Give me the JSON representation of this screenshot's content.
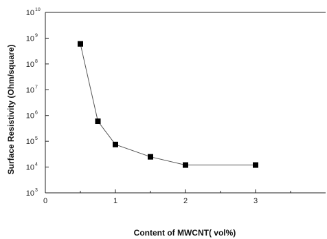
{
  "chart_data": {
    "type": "line",
    "xlabel": "Content of  MWCNT( vol%)",
    "ylabel": "Surface Resistivity (Ohm/square)",
    "xlim": [
      0,
      4
    ],
    "ylim": [
      1000,
      10000000000
    ],
    "y_scale": "log",
    "x_ticks": [
      "0",
      "1",
      "2",
      "3"
    ],
    "y_ticks": [
      {
        "base": "10",
        "exp": "3"
      },
      {
        "base": "10",
        "exp": "4"
      },
      {
        "base": "10",
        "exp": "5"
      },
      {
        "base": "10",
        "exp": "6"
      },
      {
        "base": "10",
        "exp": "7"
      },
      {
        "base": "10",
        "exp": "8"
      },
      {
        "base": "10",
        "exp": "9"
      },
      {
        "base": "10",
        "exp": "10"
      }
    ],
    "grid": false,
    "series": [
      {
        "marker": "square",
        "points": [
          {
            "x": 0.5,
            "y": 600000000
          },
          {
            "x": 0.75,
            "y": 600000
          },
          {
            "x": 1.0,
            "y": 75000
          },
          {
            "x": 1.5,
            "y": 25000
          },
          {
            "x": 2.0,
            "y": 12000
          },
          {
            "x": 3.0,
            "y": 12000
          }
        ]
      }
    ],
    "colors": {
      "line": "#555555",
      "marker": "#000000",
      "axis": "#222222"
    }
  }
}
